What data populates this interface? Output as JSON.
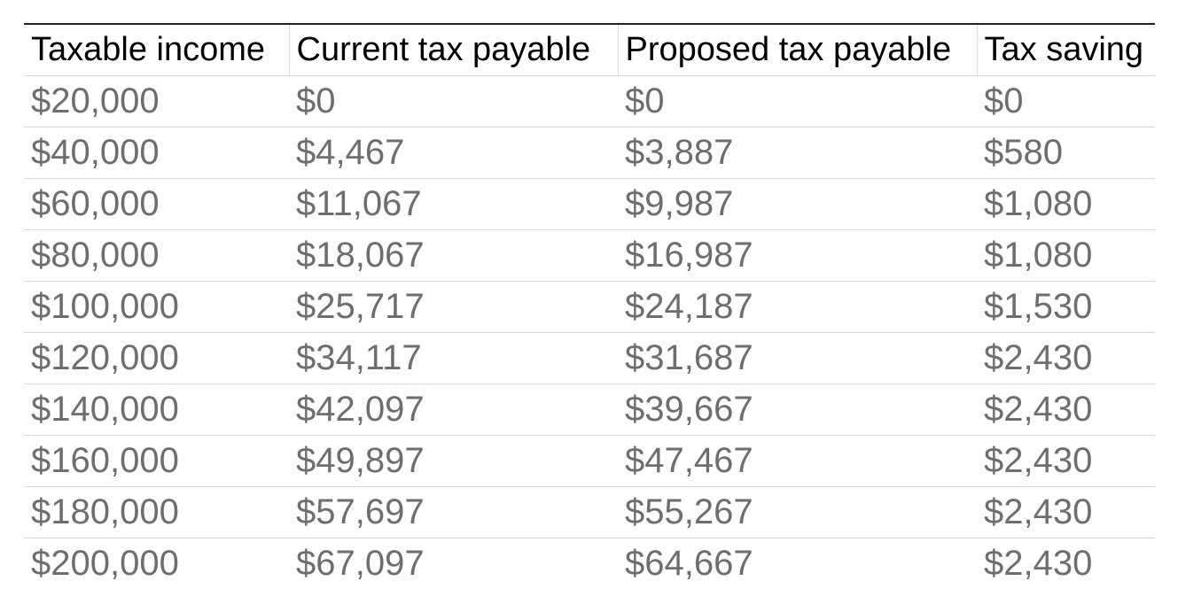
{
  "table": {
    "headers": [
      "Taxable income",
      "Current tax payable",
      "Proposed tax payable",
      "Tax saving"
    ],
    "rows": [
      [
        "$20,000",
        "$0",
        "$0",
        "$0"
      ],
      [
        "$40,000",
        "$4,467",
        "$3,887",
        "$580"
      ],
      [
        "$60,000",
        "$11,067",
        "$9,987",
        "$1,080"
      ],
      [
        "$80,000",
        "$18,067",
        "$16,987",
        "$1,080"
      ],
      [
        "$100,000",
        "$25,717",
        "$24,187",
        "$1,530"
      ],
      [
        "$120,000",
        "$34,117",
        "$31,687",
        "$2,430"
      ],
      [
        "$140,000",
        "$42,097",
        "$39,667",
        "$2,430"
      ],
      [
        "$160,000",
        "$49,897",
        "$47,467",
        "$2,430"
      ],
      [
        "$180,000",
        "$57,697",
        "$55,267",
        "$2,430"
      ],
      [
        "$200,000",
        "$67,097",
        "$64,667",
        "$2,430"
      ]
    ]
  }
}
